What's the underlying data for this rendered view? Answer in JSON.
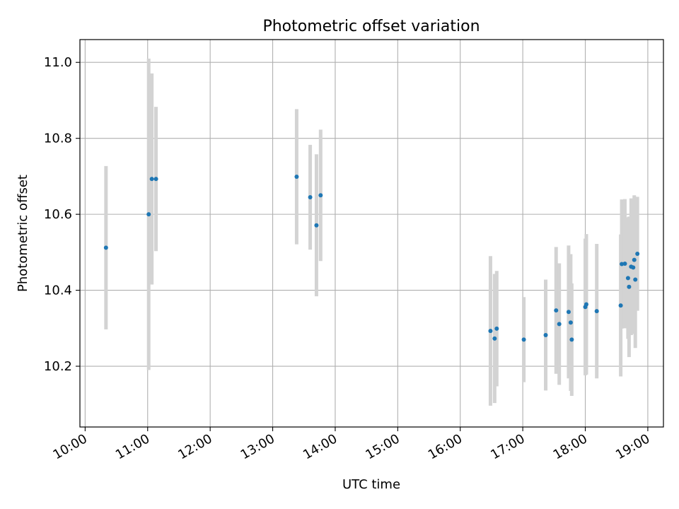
{
  "chart_data": {
    "type": "scatter",
    "title": "Photometric offset variation",
    "xlabel": "UTC time",
    "ylabel": "Photometric offset",
    "xlim": [
      "09:55",
      "19:15"
    ],
    "ylim": [
      10.04,
      11.06
    ],
    "xticks": [
      "10:00",
      "11:00",
      "12:00",
      "13:00",
      "14:00",
      "15:00",
      "16:00",
      "17:00",
      "18:00",
      "19:00"
    ],
    "yticks": [
      "10.2",
      "10.4",
      "10.6",
      "10.8",
      "11.0"
    ],
    "grid": true,
    "colors": {
      "point": "#1f77b4",
      "errorbar": "#d3d3d3",
      "grid": "#b0b0b0"
    },
    "points": [
      {
        "x": "10:20",
        "y": 10.512,
        "yerr": 0.215
      },
      {
        "x": "11:01",
        "y": 10.6,
        "yerr": 0.41
      },
      {
        "x": "11:04",
        "y": 10.693,
        "yerr": 0.278
      },
      {
        "x": "11:08",
        "y": 10.693,
        "yerr": 0.19
      },
      {
        "x": "13:23",
        "y": 10.699,
        "yerr": 0.178
      },
      {
        "x": "13:36",
        "y": 10.645,
        "yerr": 0.138
      },
      {
        "x": "13:42",
        "y": 10.571,
        "yerr": 0.187
      },
      {
        "x": "13:46",
        "y": 10.65,
        "yerr": 0.173
      },
      {
        "x": "16:29",
        "y": 10.293,
        "yerr": 0.197
      },
      {
        "x": "16:33",
        "y": 10.273,
        "yerr": 0.17
      },
      {
        "x": "16:35",
        "y": 10.299,
        "yerr": 0.152
      },
      {
        "x": "17:01",
        "y": 10.27,
        "yerr": 0.112
      },
      {
        "x": "17:22",
        "y": 10.282,
        "yerr": 0.146
      },
      {
        "x": "17:32",
        "y": 10.347,
        "yerr": 0.167
      },
      {
        "x": "17:35",
        "y": 10.311,
        "yerr": 0.16
      },
      {
        "x": "17:44",
        "y": 10.343,
        "yerr": 0.175
      },
      {
        "x": "17:46",
        "y": 10.315,
        "yerr": 0.18
      },
      {
        "x": "17:47",
        "y": 10.27,
        "yerr": 0.148
      },
      {
        "x": "18:00",
        "y": 10.356,
        "yerr": 0.18
      },
      {
        "x": "18:01",
        "y": 10.363,
        "yerr": 0.185
      },
      {
        "x": "18:11",
        "y": 10.345,
        "yerr": 0.177
      },
      {
        "x": "18:34",
        "y": 10.36,
        "yerr": 0.187
      },
      {
        "x": "18:35",
        "y": 10.469,
        "yerr": 0.17
      },
      {
        "x": "18:38",
        "y": 10.47,
        "yerr": 0.17
      },
      {
        "x": "18:41",
        "y": 10.432,
        "yerr": 0.16
      },
      {
        "x": "18:42",
        "y": 10.409,
        "yerr": 0.185
      },
      {
        "x": "18:44",
        "y": 10.462,
        "yerr": 0.18
      },
      {
        "x": "18:46",
        "y": 10.46,
        "yerr": 0.175
      },
      {
        "x": "18:47",
        "y": 10.48,
        "yerr": 0.17
      },
      {
        "x": "18:48",
        "y": 10.428,
        "yerr": 0.18
      },
      {
        "x": "18:50",
        "y": 10.496,
        "yerr": 0.15
      }
    ]
  }
}
